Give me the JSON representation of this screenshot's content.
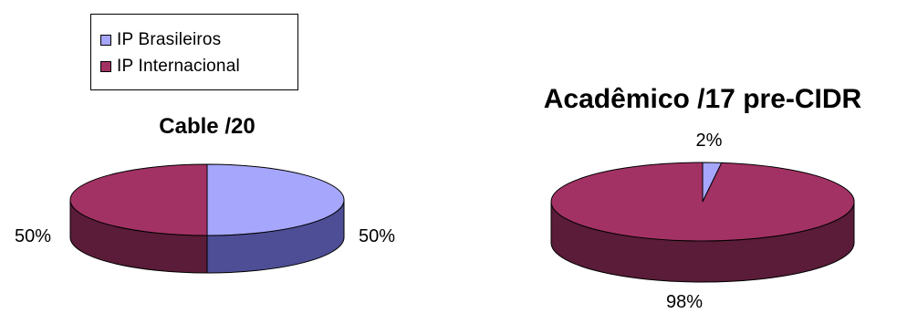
{
  "colors": {
    "brasileiros_top": "#a6a6fc",
    "brasileiros_side": "#4e4e96",
    "internacional_top": "#a33264",
    "internacional_side": "#5a1c38",
    "outline": "#000000"
  },
  "legend": {
    "items": [
      {
        "label": "IP Brasileiros",
        "color": "#a6a6fc"
      },
      {
        "label": "IP Internacional",
        "color": "#a33264"
      }
    ]
  },
  "chart_data": [
    {
      "type": "pie",
      "title": "Cable /20",
      "slices": [
        {
          "label": "IP Brasileiros",
          "value": 50,
          "display": "50%"
        },
        {
          "label": "IP Internacional",
          "value": 50,
          "display": "50%"
        }
      ]
    },
    {
      "type": "pie",
      "title": "Acadêmico /17 pre-CIDR",
      "slices": [
        {
          "label": "IP Brasileiros",
          "value": 2,
          "display": "2%"
        },
        {
          "label": "IP Internacional",
          "value": 98,
          "display": "98%"
        }
      ]
    }
  ]
}
